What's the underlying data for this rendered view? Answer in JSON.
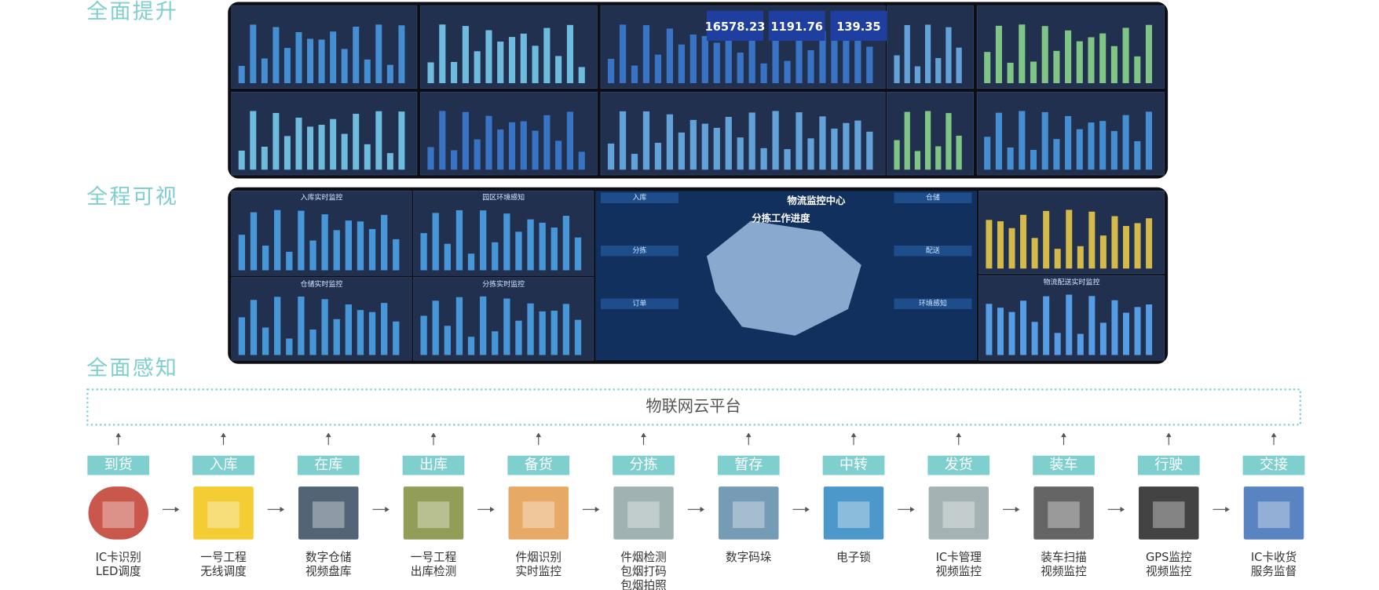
{
  "sections": [
    "全面提升",
    "全程可视",
    "全面感知"
  ],
  "dashboard1": {
    "kpis": [
      "16578.23",
      "1191.76",
      "139.35"
    ]
  },
  "dashboard2": {
    "panels": [
      "入库实时监控",
      "园区环境感知",
      "仓储实时监控",
      "分拣实时监控"
    ],
    "map_title": "物流监控中心",
    "map_subtitle": "分拣工作进度",
    "side_tabs": [
      "入库",
      "分拣",
      "订单",
      "仓储",
      "配送",
      "环境感知"
    ],
    "delivery_title": "物流配送实时监控"
  },
  "platform": "物联网云平台",
  "steps": [
    {
      "label": "到货",
      "desc": [
        "IC卡识别",
        "LED调度"
      ]
    },
    {
      "label": "入库",
      "desc": [
        "一号工程",
        "无线调度"
      ]
    },
    {
      "label": "在库",
      "desc": [
        "数字仓储",
        "视频盘库"
      ]
    },
    {
      "label": "出库",
      "desc": [
        "一号工程",
        "出库检测"
      ]
    },
    {
      "label": "备货",
      "desc": [
        "件烟识别",
        "实时监控"
      ]
    },
    {
      "label": "分拣",
      "desc": [
        "件烟检测",
        "包烟打码",
        "包烟拍照"
      ]
    },
    {
      "label": "暂存",
      "desc": [
        "数字码垛"
      ]
    },
    {
      "label": "中转",
      "desc": [
        "电子锁"
      ]
    },
    {
      "label": "发货",
      "desc": [
        "IC卡管理",
        "视频监控"
      ]
    },
    {
      "label": "装车",
      "desc": [
        "装车扫描",
        "视频监控"
      ]
    },
    {
      "label": "行驶",
      "desc": [
        "GPS监控",
        "视频监控"
      ]
    },
    {
      "label": "交接",
      "desc": [
        "IC卡收货",
        "服务监督"
      ]
    }
  ]
}
